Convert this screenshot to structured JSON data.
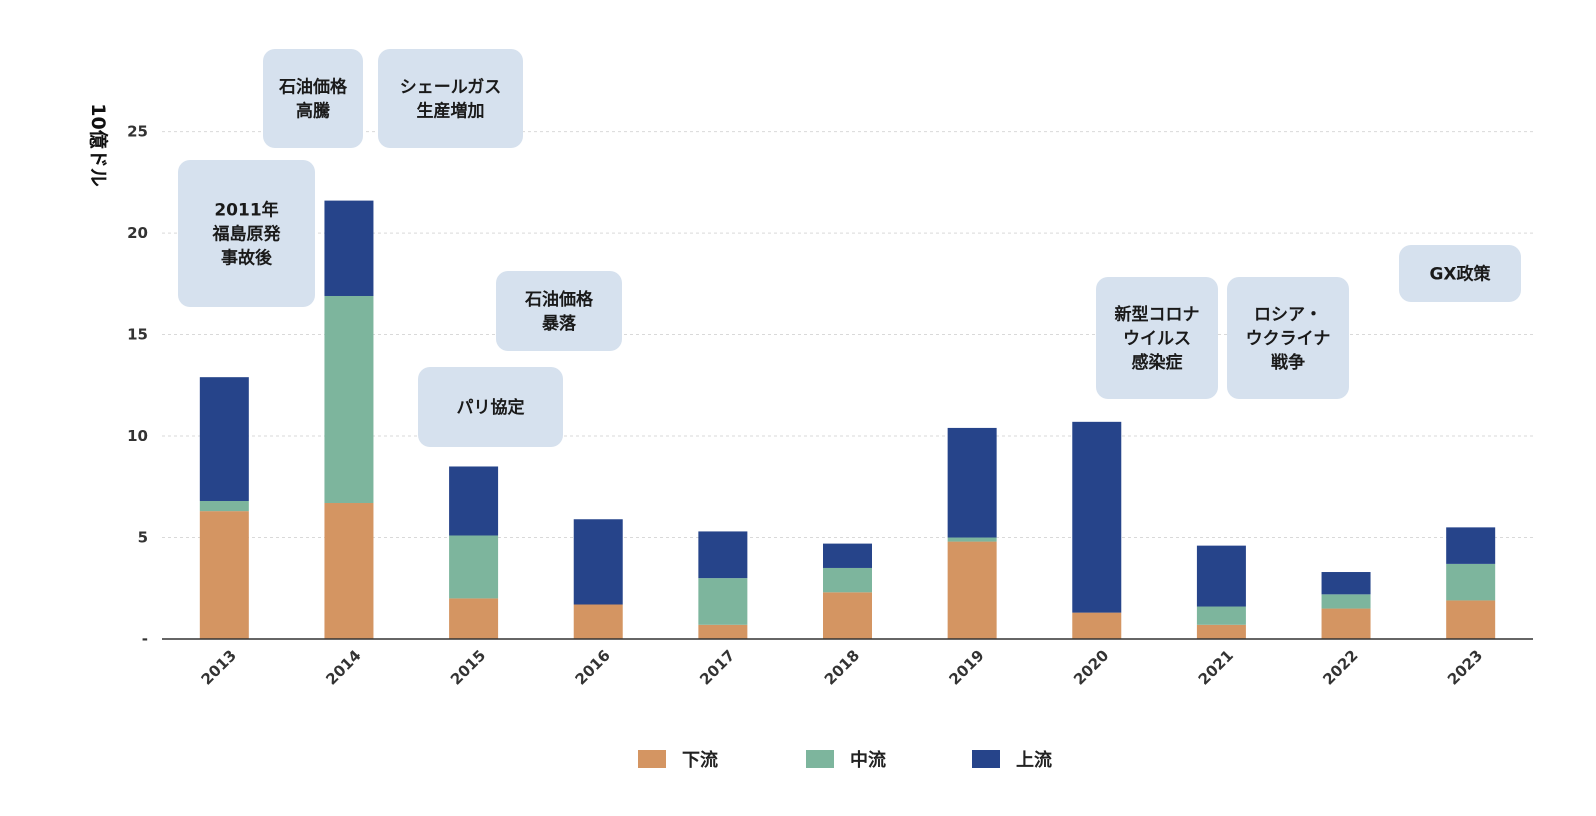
{
  "chart_data": {
    "type": "bar",
    "stacked": true,
    "title": "",
    "xlabel": "",
    "ylabel": "10億ドル",
    "ylim": [
      0,
      27
    ],
    "yticks": [
      {
        "value": 0,
        "label": "-"
      },
      {
        "value": 5,
        "label": "5"
      },
      {
        "value": 10,
        "label": "10"
      },
      {
        "value": 15,
        "label": "15"
      },
      {
        "value": 20,
        "label": "20"
      },
      {
        "value": 25,
        "label": "25"
      }
    ],
    "grid": true,
    "categories": [
      "2013",
      "2014",
      "2015",
      "2016",
      "2017",
      "2018",
      "2019",
      "2020",
      "2021",
      "2022",
      "2023"
    ],
    "series": [
      {
        "name": "下流",
        "color": "#D49562",
        "values": [
          6.3,
          6.7,
          2.0,
          1.7,
          0.7,
          2.3,
          4.8,
          1.3,
          0.7,
          1.5,
          1.9
        ]
      },
      {
        "name": "中流",
        "color": "#7DB59D",
        "values": [
          0.5,
          10.2,
          3.1,
          0.0,
          2.3,
          1.2,
          0.2,
          0.0,
          0.9,
          0.7,
          1.8
        ]
      },
      {
        "name": "上流",
        "color": "#26448A",
        "values": [
          6.1,
          4.7,
          3.4,
          4.2,
          2.3,
          1.2,
          5.4,
          9.4,
          3.0,
          1.1,
          1.8
        ]
      }
    ],
    "legend_position": "bottom-center",
    "annotations": [
      {
        "lines": [
          "2011年",
          "福島原発",
          "事故後"
        ],
        "category": "2013"
      },
      {
        "lines": [
          "石油価格",
          "高騰"
        ],
        "category": "2014"
      },
      {
        "lines": [
          "シェールガス",
          "生産増加"
        ],
        "category": "2014"
      },
      {
        "lines": [
          "パリ協定"
        ],
        "category": "2015"
      },
      {
        "lines": [
          "石油価格",
          "暴落"
        ],
        "category": "2016"
      },
      {
        "lines": [
          "新型コロナ",
          "ウイルス",
          "感染症"
        ],
        "category": "2021"
      },
      {
        "lines": [
          "ロシア・",
          "ウクライナ",
          "戦争"
        ],
        "category": "2022"
      },
      {
        "lines": [
          "GX政策"
        ],
        "category": "2023"
      }
    ]
  },
  "colors": {
    "downstream": "#D49562",
    "midstream": "#7DB59D",
    "upstream": "#26448A",
    "annotation_bg": "#D6E1EE",
    "grid": "#D9D9D9",
    "axis": "#333333"
  }
}
